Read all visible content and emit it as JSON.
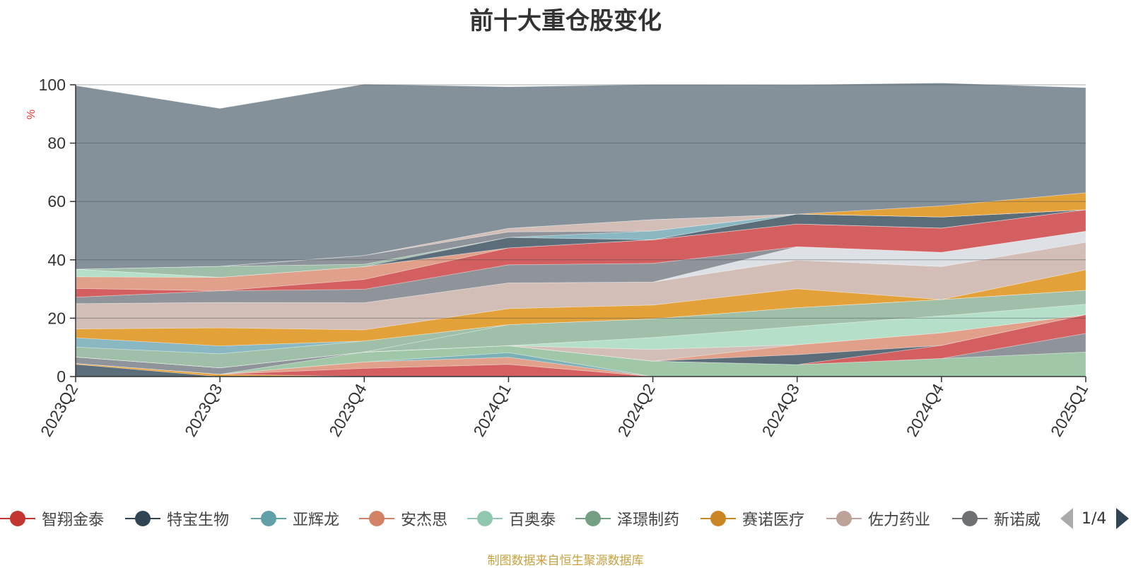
{
  "chart_data": {
    "type": "area",
    "stacked": true,
    "title": "前十大重仓股变化",
    "ylabel": "%",
    "ylim": [
      0,
      100
    ],
    "yticks": [
      0,
      20,
      40,
      60,
      80,
      100
    ],
    "categories": [
      "2023Q2",
      "2023Q3",
      "2023Q4",
      "2024Q1",
      "2024Q2",
      "2024Q3",
      "2024Q4",
      "2025Q1"
    ],
    "grid": true,
    "legend_position": "bottom",
    "legend_page": "1/4",
    "series": [
      {
        "name": "",
        "color": "#5c6d7a",
        "values": [
          4.2,
          0,
          0,
          0,
          0,
          0,
          0,
          0
        ]
      },
      {
        "name": "",
        "color": "#e3a13a",
        "values": [
          0.3,
          0.8,
          0,
          0,
          0,
          0,
          0,
          0
        ]
      },
      {
        "name": "",
        "color": "#d45f60",
        "values": [
          0,
          0,
          2.8,
          4.2,
          0,
          0,
          0,
          0
        ]
      },
      {
        "name": "",
        "color": "#e0a08a",
        "values": [
          0,
          0,
          2.2,
          2.4,
          0,
          0,
          0,
          0
        ]
      },
      {
        "name": "",
        "color": "#7ab0b6",
        "values": [
          0,
          0,
          0,
          1.6,
          0,
          0,
          0,
          0
        ]
      },
      {
        "name": "",
        "color": "#a0c8a8",
        "values": [
          0,
          0,
          3.4,
          2.4,
          5.3,
          4.1,
          6.2,
          8.4
        ]
      },
      {
        "name": "",
        "color": "#8f949a",
        "values": [
          2.2,
          2.2,
          0,
          0,
          0,
          0,
          0,
          6.4
        ]
      },
      {
        "name": "",
        "color": "#d45f60",
        "values": [
          0,
          0,
          0,
          0,
          0,
          0,
          4.5,
          6.4
        ]
      },
      {
        "name": "",
        "color": "#5c6d7a",
        "values": [
          0,
          0,
          0,
          0,
          0,
          3.4,
          0,
          0
        ]
      },
      {
        "name": "",
        "color": "#e0a08a",
        "values": [
          0,
          0,
          0,
          0,
          0,
          3.4,
          4.3,
          0
        ]
      },
      {
        "name": "",
        "color": "#d2beb7",
        "values": [
          0,
          0,
          0,
          0,
          4.0,
          0,
          0,
          0
        ]
      },
      {
        "name": "",
        "color": "#b5dfc9",
        "values": [
          0,
          0,
          0,
          0,
          4.1,
          6.3,
          5.8,
          3.6
        ]
      },
      {
        "name": "",
        "color": "#9fbfa8",
        "values": [
          0,
          0,
          0,
          7.2,
          6.4,
          6.4,
          5.6,
          4.8
        ]
      },
      {
        "name": "",
        "color": "#9fbfa8",
        "values": [
          3.4,
          4.8,
          3.8,
          0,
          0,
          0,
          0,
          0
        ]
      },
      {
        "name": "",
        "color": "#8ab8c2",
        "values": [
          3.2,
          2.7,
          0,
          0,
          0,
          0,
          0,
          0
        ]
      },
      {
        "name": "",
        "color": "#e3a13a",
        "values": [
          3.0,
          6.2,
          3.8,
          5.5,
          4.7,
          6.5,
          0,
          7.0
        ]
      },
      {
        "name": "",
        "color": "#d2beb7",
        "values": [
          8.7,
          8.7,
          9.3,
          8.8,
          7.9,
          9.8,
          11.3,
          9.4
        ]
      },
      {
        "name": "",
        "color": "#dde1e6",
        "values": [
          0,
          0,
          0,
          0,
          0,
          4.6,
          4.9,
          3.8
        ]
      },
      {
        "name": "",
        "color": "#8f949a",
        "values": [
          2.2,
          4.0,
          4.6,
          6.2,
          6.4,
          0,
          0,
          0
        ]
      },
      {
        "name": "",
        "color": "#d45f60",
        "values": [
          3.0,
          0,
          3.4,
          5.8,
          8.1,
          7.8,
          8.3,
          7.4
        ]
      },
      {
        "name": "",
        "color": "#e0a08a",
        "values": [
          4.0,
          4.6,
          4.4,
          0,
          0,
          0,
          0,
          0
        ]
      },
      {
        "name": "",
        "color": "#b5dfc9",
        "values": [
          2.6,
          0,
          0,
          0,
          0,
          0,
          0,
          0
        ]
      },
      {
        "name": "",
        "color": "#5c6d7a",
        "values": [
          0,
          0,
          0,
          3.6,
          0,
          3.4,
          3.8,
          0
        ]
      },
      {
        "name": "",
        "color": "#9fbfa8",
        "values": [
          0,
          3.8,
          0.8,
          0,
          0,
          0,
          0,
          0
        ]
      },
      {
        "name": "",
        "color": "#8ab8c2",
        "values": [
          0,
          0,
          0,
          0,
          3.0,
          0,
          0,
          0
        ]
      },
      {
        "name": "",
        "color": "#8f949a",
        "values": [
          0,
          0,
          3.0,
          1.9,
          0,
          0,
          0,
          0
        ]
      },
      {
        "name": "",
        "color": "#d2beb7",
        "values": [
          0,
          0,
          0,
          1.2,
          3.9,
          0,
          0,
          0
        ]
      },
      {
        "name": "",
        "color": "#e3a13a",
        "values": [
          0,
          0,
          0,
          0,
          0,
          0,
          3.8,
          5.8
        ]
      },
      {
        "name": "",
        "color": "#84919a",
        "values": [
          62.9,
          54.1,
          58.7,
          48.5,
          46.3,
          44.3,
          42.1,
          36.0
        ]
      }
    ]
  },
  "legend": {
    "items": [
      {
        "label": "智翔金泰",
        "color": "#c23531"
      },
      {
        "label": "特宝生物",
        "color": "#2f4554"
      },
      {
        "label": "亚辉龙",
        "color": "#61a0a8"
      },
      {
        "label": "安杰思",
        "color": "#d48265"
      },
      {
        "label": "百奥泰",
        "color": "#91c7ae"
      },
      {
        "label": "泽璟制药",
        "color": "#749f83"
      },
      {
        "label": "赛诺医疗",
        "color": "#ca8622"
      },
      {
        "label": "佐力药业",
        "color": "#bda29a"
      },
      {
        "label": "新诺威",
        "color": "#6e7074"
      }
    ],
    "page": "1/4"
  },
  "footer": {
    "source_note": "制图数据来自恒生聚源数据库"
  }
}
